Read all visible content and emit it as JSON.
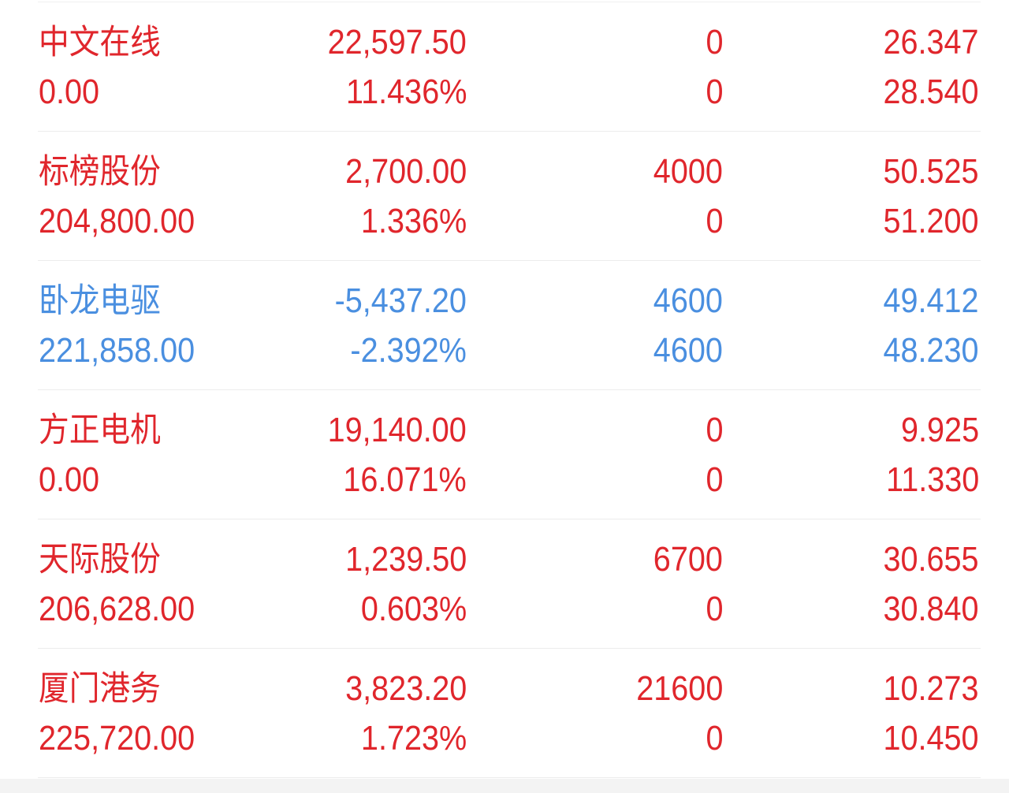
{
  "colors": {
    "up": "#e0262c",
    "down": "#4a8fe0"
  },
  "rows": [
    {
      "name": "中文在线",
      "value": "0.00",
      "change": "22,597.50",
      "change_pct": "11.436%",
      "qty1": "0",
      "qty2": "0",
      "price1": "26.347",
      "price2": "28.540",
      "trend": "up"
    },
    {
      "name": "标榜股份",
      "value": "204,800.00",
      "change": "2,700.00",
      "change_pct": "1.336%",
      "qty1": "4000",
      "qty2": "0",
      "price1": "50.525",
      "price2": "51.200",
      "trend": "up"
    },
    {
      "name": "卧龙电驱",
      "value": "221,858.00",
      "change": "-5,437.20",
      "change_pct": "-2.392%",
      "qty1": "4600",
      "qty2": "4600",
      "price1": "49.412",
      "price2": "48.230",
      "trend": "down"
    },
    {
      "name": "方正电机",
      "value": "0.00",
      "change": "19,140.00",
      "change_pct": "16.071%",
      "qty1": "0",
      "qty2": "0",
      "price1": "9.925",
      "price2": "11.330",
      "trend": "up"
    },
    {
      "name": "天际股份",
      "value": "206,628.00",
      "change": "1,239.50",
      "change_pct": "0.603%",
      "qty1": "6700",
      "qty2": "0",
      "price1": "30.655",
      "price2": "30.840",
      "trend": "up"
    },
    {
      "name": "厦门港务",
      "value": "225,720.00",
      "change": "3,823.20",
      "change_pct": "1.723%",
      "qty1": "21600",
      "qty2": "0",
      "price1": "10.273",
      "price2": "10.450",
      "trend": "up"
    }
  ]
}
